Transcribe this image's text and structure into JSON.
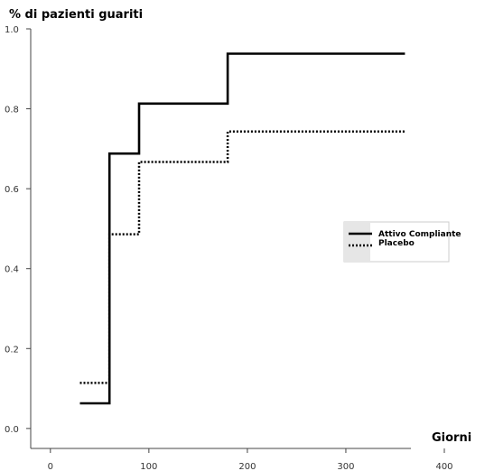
{
  "chart_data": {
    "type": "line",
    "step": true,
    "ylabel": "% di pazienti guariti",
    "xlabel": "Giorni",
    "xlim": [
      -20,
      400
    ],
    "ylim": [
      -0.05,
      1.0
    ],
    "x_ticks": [
      0,
      100,
      200,
      300,
      400
    ],
    "x_tick_labels": [
      "0",
      "100",
      "200",
      "300",
      "400"
    ],
    "y_ticks": [
      0.0,
      0.2,
      0.4,
      0.6,
      0.8,
      1.0
    ],
    "y_tick_labels": [
      "0.0",
      "0.2",
      "0.4",
      "0.6",
      "0.8",
      "1.0"
    ],
    "legend_placement": "right",
    "grid": false,
    "series": [
      {
        "name": "Attivo Compliante",
        "style": "solid",
        "color": "#000000",
        "points": [
          [
            30,
            0.063
          ],
          [
            60,
            0.063
          ],
          [
            60,
            0.688
          ],
          [
            90,
            0.688
          ],
          [
            90,
            0.813
          ],
          [
            180,
            0.813
          ],
          [
            180,
            0.938
          ],
          [
            360,
            0.938
          ]
        ]
      },
      {
        "name": "Placebo",
        "style": "dotted",
        "color": "#000000",
        "points": [
          [
            30,
            0.114
          ],
          [
            60,
            0.114
          ],
          [
            60,
            0.486
          ],
          [
            90,
            0.486
          ],
          [
            90,
            0.667
          ],
          [
            180,
            0.667
          ],
          [
            180,
            0.743
          ],
          [
            360,
            0.743
          ]
        ]
      }
    ]
  }
}
